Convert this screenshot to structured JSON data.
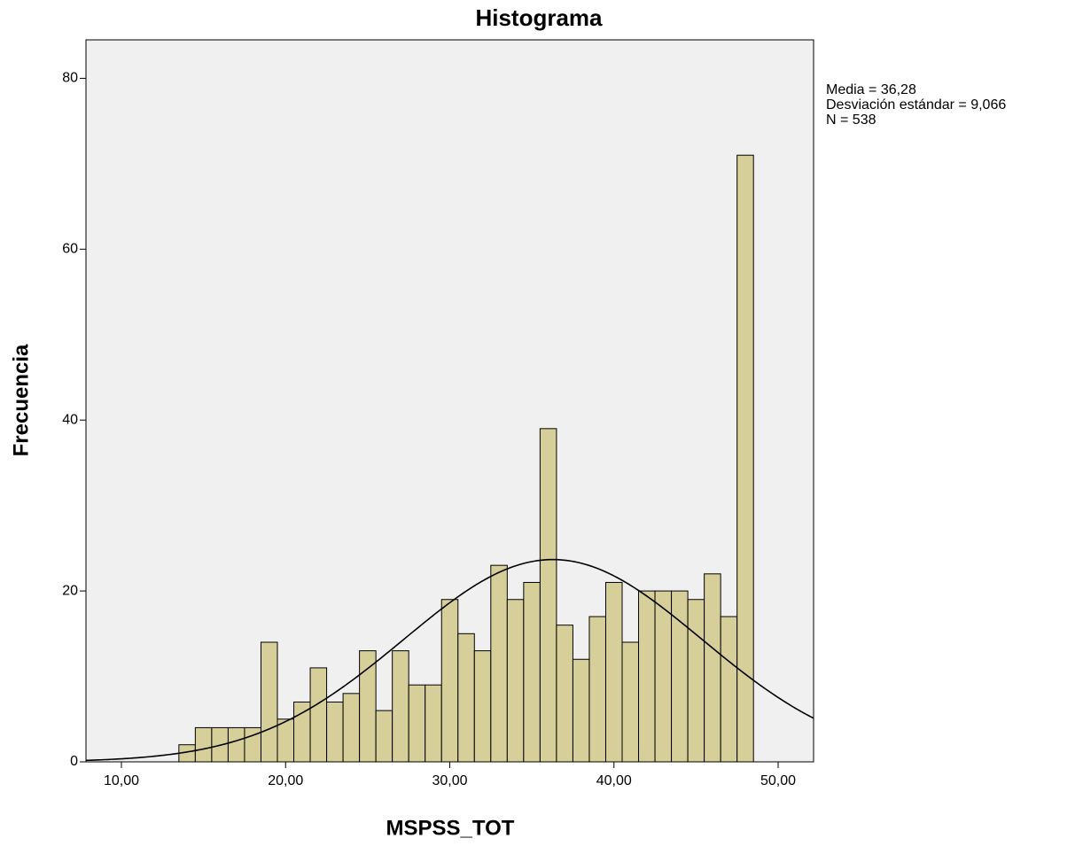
{
  "chart_data": {
    "type": "histogram",
    "title": "Histograma",
    "x_label": "MSPSS_TOT",
    "y_label": "Frecuencia",
    "bins": [
      13.5,
      14.5,
      15.5,
      16.5,
      17.5,
      18.5,
      19.5,
      20.5,
      21.5,
      22.5,
      23.5,
      24.5,
      25.5,
      26.5,
      27.5,
      28.5,
      29.5,
      30.5,
      31.5,
      32.5,
      33.5,
      34.5,
      35.5,
      36.5,
      37.5,
      38.5,
      39.5,
      40.5,
      41.5,
      42.5,
      43.5,
      44.5,
      45.5,
      46.5,
      47.5,
      48.5
    ],
    "counts": [
      2,
      4,
      4,
      4,
      4,
      14,
      5,
      7,
      11,
      7,
      8,
      13,
      6,
      13,
      9,
      9,
      19,
      15,
      13,
      23,
      19,
      21,
      39,
      16,
      12,
      17,
      21,
      14,
      20,
      20,
      20,
      19,
      22,
      17,
      71
    ],
    "color": "#d6cf99",
    "edge_color": "#000000",
    "background": "#f0f0f0",
    "curve_color": "#000000",
    "stats": [
      {
        "value": 36.28,
        "label": "Media = 36,28"
      },
      {
        "value": 9.066,
        "label": "Desviación estándar = 9,066"
      },
      {
        "value": 538,
        "label": "N = 538"
      }
    ],
    "xlim": [
      7.84,
      52.16
    ],
    "ylim": [
      0,
      84.5
    ],
    "xticks": [
      {
        "value": 10,
        "label": "10,00"
      },
      {
        "value": 20,
        "label": "20,00"
      },
      {
        "value": 30,
        "label": "30,00"
      },
      {
        "value": 40,
        "label": "40,00"
      },
      {
        "value": 50,
        "label": "50,00"
      }
    ],
    "yticks": [
      0,
      20,
      40,
      60,
      80
    ],
    "grid": false
  }
}
